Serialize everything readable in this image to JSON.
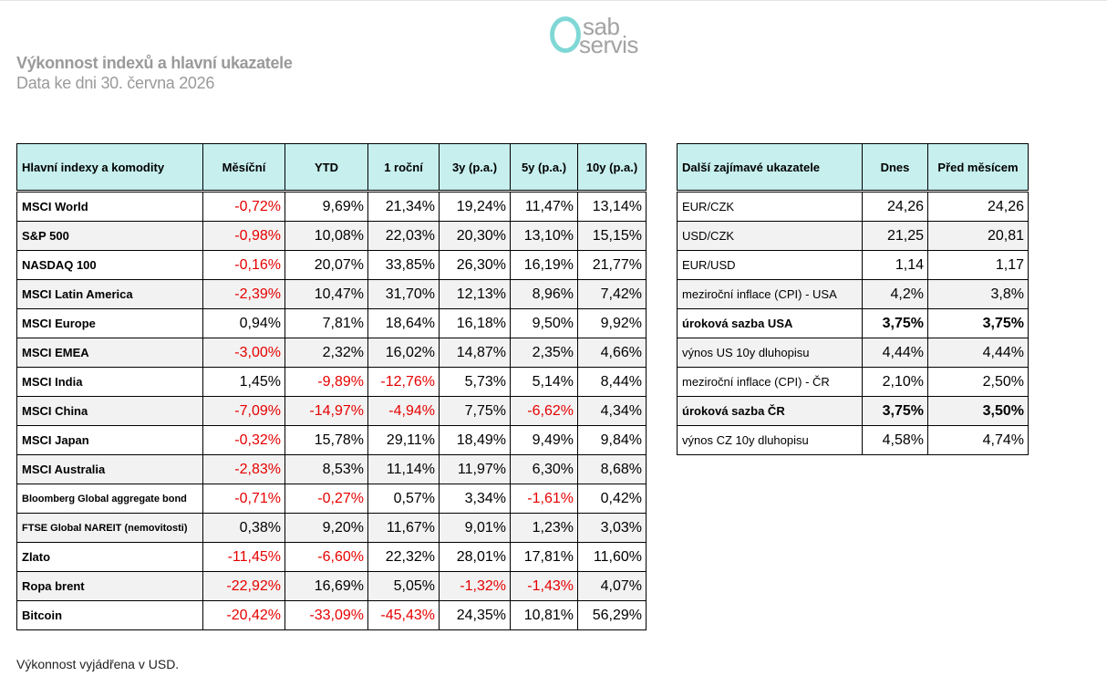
{
  "logo": {
    "line1": "sab",
    "line2": "servis",
    "ring_color": "#7fd8d6",
    "text_color": "#a3a3a3"
  },
  "header": {
    "title": "Výkonnost indexů a hlavní ukazatele",
    "subtitle": "Data ke dni 30. června 2026"
  },
  "colors": {
    "header_bg": "#c6efee",
    "negative": "#e60000",
    "alt_row": "#f2f2f2",
    "title_gray": "#9a9a9a"
  },
  "indices_table": {
    "headers": [
      "Hlavní indexy a komodity",
      "Měsíční",
      "YTD",
      "1 roční",
      "3y (p.a.)",
      "5y (p.a.)",
      "10y (p.a.)"
    ],
    "rows": [
      {
        "name": "MSCI World",
        "values": [
          "-0,72%",
          "9,69%",
          "21,34%",
          "19,24%",
          "11,47%",
          "13,14%"
        ]
      },
      {
        "name": "S&P 500",
        "values": [
          "-0,98%",
          "10,08%",
          "22,03%",
          "20,30%",
          "13,10%",
          "15,15%"
        ]
      },
      {
        "name": "NASDAQ 100",
        "values": [
          "-0,16%",
          "20,07%",
          "33,85%",
          "26,30%",
          "16,19%",
          "21,77%"
        ]
      },
      {
        "name": "MSCI Latin America",
        "values": [
          "-2,39%",
          "10,47%",
          "31,70%",
          "12,13%",
          "8,96%",
          "7,42%"
        ]
      },
      {
        "name": "MSCI Europe",
        "values": [
          "0,94%",
          "7,81%",
          "18,64%",
          "16,18%",
          "9,50%",
          "9,92%"
        ]
      },
      {
        "name": "MSCI EMEA",
        "values": [
          "-3,00%",
          "2,32%",
          "16,02%",
          "14,87%",
          "2,35%",
          "4,66%"
        ]
      },
      {
        "name": "MSCI India",
        "values": [
          "1,45%",
          "-9,89%",
          "-12,76%",
          "5,73%",
          "5,14%",
          "8,44%"
        ]
      },
      {
        "name": "MSCI China",
        "values": [
          "-7,09%",
          "-14,97%",
          "-4,94%",
          "7,75%",
          "-6,62%",
          "4,34%"
        ]
      },
      {
        "name": "MSCI Japan",
        "values": [
          "-0,32%",
          "15,78%",
          "29,11%",
          "18,49%",
          "9,49%",
          "9,84%"
        ]
      },
      {
        "name": "MSCI Australia",
        "values": [
          "-2,83%",
          "8,53%",
          "11,14%",
          "11,97%",
          "6,30%",
          "8,68%"
        ]
      },
      {
        "name": "Bloomberg Global aggregate bond",
        "small": true,
        "values": [
          "-0,71%",
          "-0,27%",
          "0,57%",
          "3,34%",
          "-1,61%",
          "0,42%"
        ]
      },
      {
        "name": "FTSE Global NAREIT (nemovitosti)",
        "small": true,
        "values": [
          "0,38%",
          "9,20%",
          "11,67%",
          "9,01%",
          "1,23%",
          "3,03%"
        ]
      },
      {
        "name": "Zlato",
        "values": [
          "-11,45%",
          "-6,60%",
          "22,32%",
          "28,01%",
          "17,81%",
          "11,60%"
        ]
      },
      {
        "name": "Ropa brent",
        "values": [
          "-22,92%",
          "16,69%",
          "5,05%",
          "-1,32%",
          "-1,43%",
          "4,07%"
        ]
      },
      {
        "name": "Bitcoin",
        "values": [
          "-20,42%",
          "-33,09%",
          "-45,43%",
          "24,35%",
          "10,81%",
          "56,29%"
        ]
      }
    ]
  },
  "indicators_table": {
    "headers": [
      "Další zajímavé ukazatele",
      "Dnes",
      "Před měsícem"
    ],
    "rows": [
      {
        "name": "EUR/CZK",
        "values": [
          "24,26",
          "24,26"
        ]
      },
      {
        "name": "USD/CZK",
        "values": [
          "21,25",
          "20,81"
        ]
      },
      {
        "name": "EUR/USD",
        "values": [
          "1,14",
          "1,17"
        ]
      },
      {
        "name": "meziroční inflace (CPI) - USA",
        "values": [
          "4,2%",
          "3,8%"
        ]
      },
      {
        "name": "úroková sazba USA",
        "bold": true,
        "values": [
          "3,75%",
          "3,75%"
        ]
      },
      {
        "name": "výnos US 10y dluhopisu",
        "values": [
          "4,44%",
          "4,44%"
        ]
      },
      {
        "name": "meziroční inflace (CPI) - ČR",
        "values": [
          "2,10%",
          "2,50%"
        ]
      },
      {
        "name": "úroková sazba ČR",
        "bold": true,
        "values": [
          "3,75%",
          "3,50%"
        ]
      },
      {
        "name": "výnos CZ 10y dluhopisu",
        "values": [
          "4,58%",
          "4,74%"
        ]
      }
    ]
  },
  "footnote": "Výkonnost vyjádřena v USD."
}
